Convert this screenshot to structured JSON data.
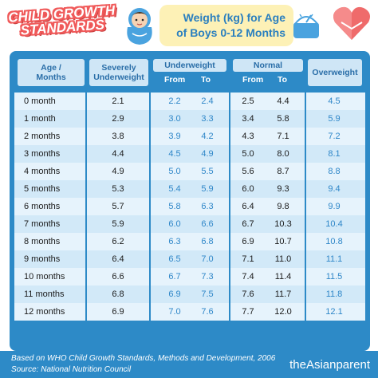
{
  "logo": {
    "line1": "CHILD GROWTH",
    "line2": "STANDARDS"
  },
  "title": {
    "line1": "Weight (kg) for Age",
    "line2": "of Boys 0-12 Months"
  },
  "headers": {
    "age": "Age / Months",
    "severely": "Severely Underweight",
    "underweight": "Underweight",
    "normal": "Normal",
    "overweight": "Overweight",
    "from": "From",
    "to": "To"
  },
  "rows": [
    {
      "age": "0 month",
      "sev": "2.1",
      "uf": "2.2",
      "ut": "2.4",
      "nf": "2.5",
      "nt": "4.4",
      "ov": "4.5"
    },
    {
      "age": "1 month",
      "sev": "2.9",
      "uf": "3.0",
      "ut": "3.3",
      "nf": "3.4",
      "nt": "5.8",
      "ov": "5.9"
    },
    {
      "age": "2 months",
      "sev": "3.8",
      "uf": "3.9",
      "ut": "4.2",
      "nf": "4.3",
      "nt": "7.1",
      "ov": "7.2"
    },
    {
      "age": "3 months",
      "sev": "4.4",
      "uf": "4.5",
      "ut": "4.9",
      "nf": "5.0",
      "nt": "8.0",
      "ov": "8.1"
    },
    {
      "age": "4 months",
      "sev": "4.9",
      "uf": "5.0",
      "ut": "5.5",
      "nf": "5.6",
      "nt": "8.7",
      "ov": "8.8"
    },
    {
      "age": "5 months",
      "sev": "5.3",
      "uf": "5.4",
      "ut": "5.9",
      "nf": "6.0",
      "nt": "9.3",
      "ov": "9.4"
    },
    {
      "age": "6 months",
      "sev": "5.7",
      "uf": "5.8",
      "ut": "6.3",
      "nf": "6.4",
      "nt": "9.8",
      "ov": "9.9"
    },
    {
      "age": "7 months",
      "sev": "5.9",
      "uf": "6.0",
      "ut": "6.6",
      "nf": "6.7",
      "nt": "10.3",
      "ov": "10.4"
    },
    {
      "age": "8 months",
      "sev": "6.2",
      "uf": "6.3",
      "ut": "6.8",
      "nf": "6.9",
      "nt": "10.7",
      "ov": "10.8"
    },
    {
      "age": "9 months",
      "sev": "6.4",
      "uf": "6.5",
      "ut": "7.0",
      "nf": "7.1",
      "nt": "11.0",
      "ov": "11.1"
    },
    {
      "age": "10 months",
      "sev": "6.6",
      "uf": "6.7",
      "ut": "7.3",
      "nf": "7.4",
      "nt": "11.4",
      "ov": "11.5"
    },
    {
      "age": "11 months",
      "sev": "6.8",
      "uf": "6.9",
      "ut": "7.5",
      "nf": "7.6",
      "nt": "11.7",
      "ov": "11.8"
    },
    {
      "age": "12 months",
      "sev": "6.9",
      "uf": "7.0",
      "ut": "7.6",
      "nf": "7.7",
      "nt": "12.0",
      "ov": "12.1"
    }
  ],
  "footer": {
    "source1": "Based on WHO Child Growth Standards, Methods and Development, 2006",
    "source2": "Source: National Nutrition Council",
    "brand": "theAsianparent"
  },
  "colors": {
    "primary_blue": "#2d8ac7",
    "header_cell": "#cfe6f6",
    "value_blue": "#2e86c8",
    "logo_red": "#f05a5a",
    "title_bg": "#fdf1b6"
  }
}
